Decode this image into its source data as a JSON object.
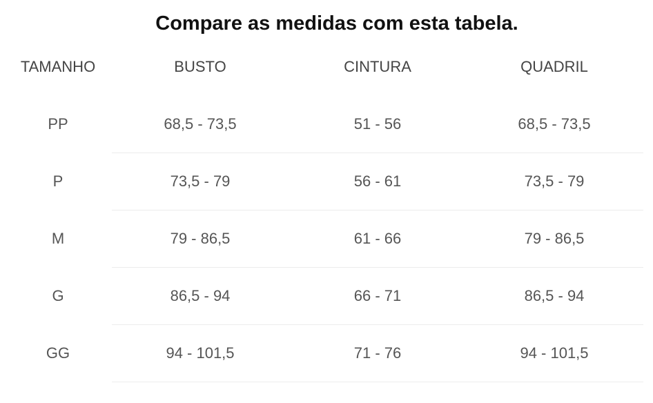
{
  "header": {
    "title": "Compare as medidas com esta tabela."
  },
  "table": {
    "columns": [
      "TAMANHO",
      "BUSTO",
      "CINTURA",
      "QUADRIL"
    ],
    "rows": [
      [
        "PP",
        "68,5 - 73,5",
        "51 - 56",
        "68,5 - 73,5"
      ],
      [
        "P",
        "73,5 - 79",
        "56 - 61",
        "73,5 - 79"
      ],
      [
        "M",
        "79 - 86,5",
        "61 - 66",
        "79 - 86,5"
      ],
      [
        "G",
        "86,5 - 94",
        "66 - 71",
        "86,5 - 94"
      ],
      [
        "GG",
        "94 - 101,5",
        "71 - 76",
        "94 - 101,5"
      ]
    ]
  }
}
